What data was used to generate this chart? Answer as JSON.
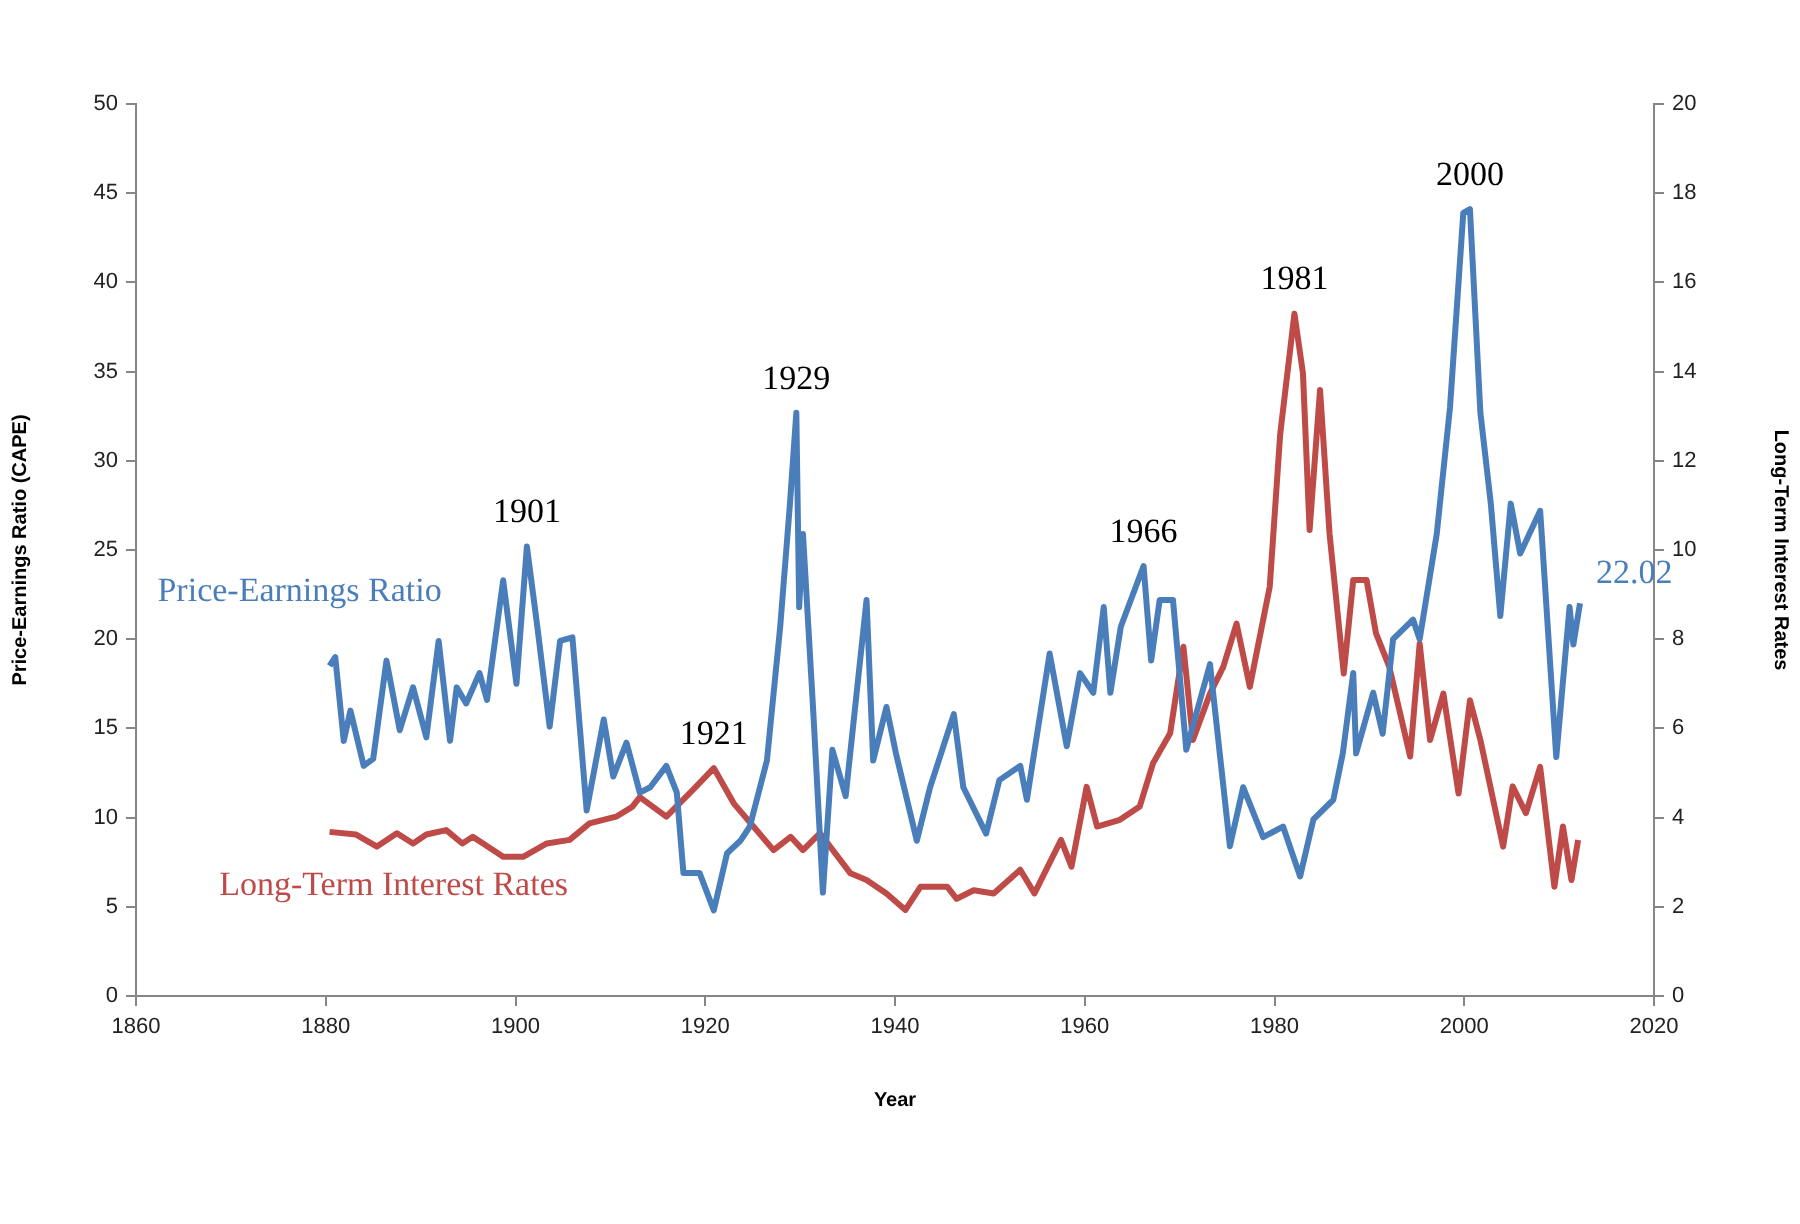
{
  "chart_data": {
    "type": "line",
    "xlabel": "Year",
    "ylabel": "Price-Earnings Ratio (CAPE)",
    "y2label": "Long-Term Interest Rates",
    "xlim": [
      1860,
      2020
    ],
    "xticks": [
      1860,
      1880,
      1900,
      1920,
      1940,
      1960,
      1980,
      2000,
      2020
    ],
    "ylim": [
      0,
      50
    ],
    "yticks": [
      0,
      5,
      10,
      15,
      20,
      25,
      30,
      35,
      40,
      45,
      50
    ],
    "y2lim": [
      0,
      20
    ],
    "y2ticks": [
      0,
      2,
      4,
      6,
      8,
      10,
      12,
      14,
      16,
      18,
      20
    ],
    "grid": false,
    "legend": false,
    "marker": "none",
    "line_style": "solid",
    "annotations": [
      {
        "text": "1901",
        "x": 1901.2,
        "y": 25.2
      },
      {
        "text": "1921",
        "x": 1920.9,
        "y": 12.8
      },
      {
        "text": "1929",
        "x": 1929.6,
        "y": 32.7
      },
      {
        "text": "1966",
        "x": 1966.2,
        "y": 24.1
      },
      {
        "text": "1981",
        "x": 1982.1,
        "y": 38.3
      },
      {
        "text": "2000",
        "x": 2000.6,
        "y": 44.1
      }
    ],
    "series": [
      {
        "name": "Price-Earnings Ratio",
        "color": "#4a7ebb",
        "axis": "y",
        "x": [
          1880.4,
          1881,
          1881.9,
          1882.6,
          1884,
          1885,
          1886.4,
          1887.8,
          1889.2,
          1890.6,
          1891.9,
          1893.1,
          1893.8,
          1894.8,
          1896.2,
          1897,
          1898.7,
          1900.1,
          1901.2,
          1902.3,
          1903.6,
          1904.7,
          1906,
          1907.5,
          1909.3,
          1910.3,
          1911.7,
          1913.1,
          1914.2,
          1915.9,
          1917,
          1917.7,
          1919.4,
          1920.9,
          1922.3,
          1923.7,
          1924.7,
          1926.5,
          1927.9,
          1928.9,
          1929.6,
          1929.9,
          1930.3,
          1931.4,
          1932.4,
          1933.4,
          1934.8,
          1937,
          1937.7,
          1939.1,
          1940.1,
          1942.3,
          1943.7,
          1946.2,
          1947.2,
          1949.6,
          1951,
          1953.2,
          1953.9,
          1956.3,
          1958.1,
          1959.5,
          1960.9,
          1962,
          1962.7,
          1963.8,
          1966.2,
          1967,
          1967.9,
          1969.3,
          1970.7,
          1973.2,
          1975.3,
          1976.7,
          1978.8,
          1980.9,
          1982.7,
          1984.1,
          1986.2,
          1987.2,
          1988.3,
          1988.6,
          1990.4,
          1991.4,
          1992.5,
          1994.6,
          1995.3,
          1997.1,
          1998.5,
          1999.9,
          2000.6,
          2001.7,
          2002.8,
          2003.8,
          2004.9,
          2005.9,
          2008,
          2009.7,
          2011.1,
          2011.5,
          2012.2
        ],
        "values": [
          18.5,
          19.0,
          14.3,
          16.0,
          12.9,
          13.3,
          18.8,
          14.9,
          17.3,
          14.5,
          19.9,
          14.3,
          17.3,
          16.4,
          18.1,
          16.6,
          23.3,
          17.5,
          25.2,
          20.7,
          15.1,
          19.9,
          20.1,
          10.4,
          15.5,
          12.3,
          14.2,
          11.4,
          11.7,
          12.9,
          11.4,
          6.9,
          6.9,
          4.8,
          8.0,
          8.7,
          9.5,
          13.2,
          20.7,
          27.4,
          32.7,
          21.8,
          25.9,
          15.8,
          5.8,
          13.8,
          11.2,
          22.2,
          13.2,
          16.2,
          13.6,
          8.7,
          11.7,
          15.8,
          11.7,
          9.1,
          12.1,
          12.9,
          11.0,
          19.2,
          14.0,
          18.1,
          17.0,
          21.8,
          17.0,
          20.7,
          24.1,
          18.8,
          22.2,
          22.2,
          13.8,
          18.6,
          8.4,
          11.7,
          8.9,
          9.5,
          6.7,
          9.9,
          11.0,
          13.6,
          18.1,
          13.6,
          17.0,
          14.7,
          20.0,
          21.1,
          20.0,
          25.9,
          33.0,
          43.9,
          44.1,
          32.7,
          27.6,
          21.3,
          27.6,
          24.8,
          27.2,
          13.4,
          21.8,
          19.7,
          22.02
        ],
        "value_labels": [
          null,
          null,
          null,
          null,
          null,
          null,
          null,
          null,
          null,
          null,
          null,
          null,
          null,
          null,
          null,
          null,
          null,
          null,
          null,
          null,
          null,
          null,
          null,
          null,
          null,
          null,
          null,
          null,
          null,
          null,
          null,
          null,
          null,
          null,
          null,
          null,
          null,
          null,
          null,
          null,
          null,
          null,
          null,
          null,
          null,
          null,
          null,
          null,
          null,
          null,
          null,
          null,
          null,
          null,
          null,
          null,
          null,
          null,
          null,
          null,
          null,
          null,
          null,
          null,
          null,
          null,
          null,
          null,
          null,
          null,
          null,
          null,
          null,
          null,
          null,
          null,
          null,
          null,
          null,
          null,
          null,
          null,
          null,
          null,
          null,
          null,
          null,
          null,
          null,
          null,
          null,
          null,
          null,
          null,
          null,
          null,
          null,
          null,
          null,
          null,
          "22.02"
        ]
      },
      {
        "name": "Long-Term Interest Rates",
        "color": "#be4b48",
        "axis": "y2",
        "x": [
          1880.4,
          1883.2,
          1885.4,
          1887.5,
          1889.2,
          1890.6,
          1892.7,
          1894.4,
          1895.5,
          1898.7,
          1900.8,
          1903.3,
          1905.7,
          1907.8,
          1910.6,
          1912.3,
          1913.1,
          1915.9,
          1918.7,
          1920.9,
          1923,
          1927.2,
          1929,
          1930.3,
          1932.1,
          1935.3,
          1937,
          1939.1,
          1941.1,
          1942.7,
          1945.5,
          1946.5,
          1948.3,
          1950.4,
          1953.2,
          1954.7,
          1957.5,
          1958.6,
          1960.2,
          1961.3,
          1963.7,
          1965.8,
          1967.2,
          1969,
          1970.4,
          1971.4,
          1973.2,
          1974.6,
          1976,
          1977.4,
          1979.5,
          1980.6,
          1982.1,
          1983,
          1983.7,
          1984.8,
          1985.8,
          1987.3,
          1988.3,
          1989.7,
          1990.7,
          1992.1,
          1994.3,
          1995.3,
          1996.4,
          1997.8,
          1999.4,
          2000.6,
          2001.7,
          2004.1,
          2005.1,
          2006.5,
          2008,
          2009.5,
          2010.4,
          2011.3,
          2012
        ],
        "values": [
          3.68,
          3.62,
          3.35,
          3.65,
          3.42,
          3.62,
          3.72,
          3.42,
          3.57,
          3.12,
          3.12,
          3.42,
          3.5,
          3.87,
          4.02,
          4.24,
          4.46,
          4.02,
          4.62,
          5.11,
          4.32,
          3.27,
          3.57,
          3.27,
          3.65,
          2.75,
          2.6,
          2.3,
          1.93,
          2.45,
          2.45,
          2.18,
          2.37,
          2.3,
          2.83,
          2.3,
          3.5,
          2.9,
          4.69,
          3.8,
          3.95,
          4.25,
          5.22,
          5.89,
          7.83,
          5.74,
          6.78,
          7.38,
          8.35,
          6.93,
          9.18,
          12.6,
          15.3,
          13.96,
          10.45,
          13.59,
          10.37,
          7.23,
          9.33,
          9.33,
          8.13,
          7.38,
          5.37,
          7.9,
          5.74,
          6.78,
          4.54,
          6.63,
          5.74,
          3.35,
          4.7,
          4.1,
          5.14,
          2.45,
          3.8,
          2.6,
          3.5
        ]
      }
    ]
  }
}
